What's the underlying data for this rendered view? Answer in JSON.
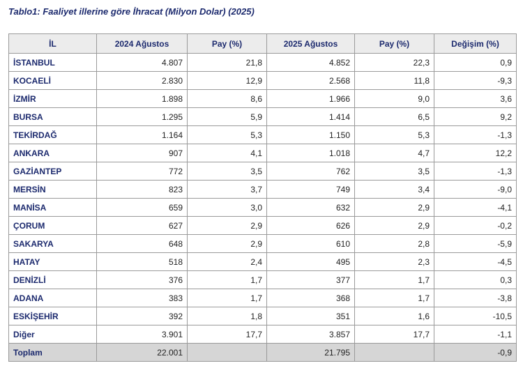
{
  "title": "Tablo1: Faaliyet illerine göre İhracat (Milyon Dolar) (2025)",
  "table": {
    "headers": [
      "İL",
      "2024 Ağustos",
      "Pay (%)",
      "2025 Ağustos",
      "Pay (%)",
      "Değişim (%)"
    ],
    "rows": [
      [
        "İSTANBUL",
        "4.807",
        "21,8",
        "4.852",
        "22,3",
        "0,9"
      ],
      [
        "KOCAELİ",
        "2.830",
        "12,9",
        "2.568",
        "11,8",
        "-9,3"
      ],
      [
        "İZMİR",
        "1.898",
        "8,6",
        "1.966",
        "9,0",
        "3,6"
      ],
      [
        "BURSA",
        "1.295",
        "5,9",
        "1.414",
        "6,5",
        "9,2"
      ],
      [
        "TEKİRDAĞ",
        "1.164",
        "5,3",
        "1.150",
        "5,3",
        "-1,3"
      ],
      [
        "ANKARA",
        "907",
        "4,1",
        "1.018",
        "4,7",
        "12,2"
      ],
      [
        "GAZİANTEP",
        "772",
        "3,5",
        "762",
        "3,5",
        "-1,3"
      ],
      [
        "MERSİN",
        "823",
        "3,7",
        "749",
        "3,4",
        "-9,0"
      ],
      [
        "MANİSA",
        "659",
        "3,0",
        "632",
        "2,9",
        "-4,1"
      ],
      [
        "ÇORUM",
        "627",
        "2,9",
        "626",
        "2,9",
        "-0,2"
      ],
      [
        "SAKARYA",
        "648",
        "2,9",
        "610",
        "2,8",
        "-5,9"
      ],
      [
        "HATAY",
        "518",
        "2,4",
        "495",
        "2,3",
        "-4,5"
      ],
      [
        "DENİZLİ",
        "376",
        "1,7",
        "377",
        "1,7",
        "0,3"
      ],
      [
        "ADANA",
        "383",
        "1,7",
        "368",
        "1,7",
        "-3,8"
      ],
      [
        "ESKİŞEHİR",
        "392",
        "1,8",
        "351",
        "1,6",
        "-10,5"
      ],
      [
        "Diğer",
        "3.901",
        "17,7",
        "3.857",
        "17,7",
        "-1,1"
      ]
    ],
    "total": {
      "label": "Toplam",
      "y2024": "22.001",
      "y2025": "21.795",
      "change": "-0,9"
    }
  }
}
